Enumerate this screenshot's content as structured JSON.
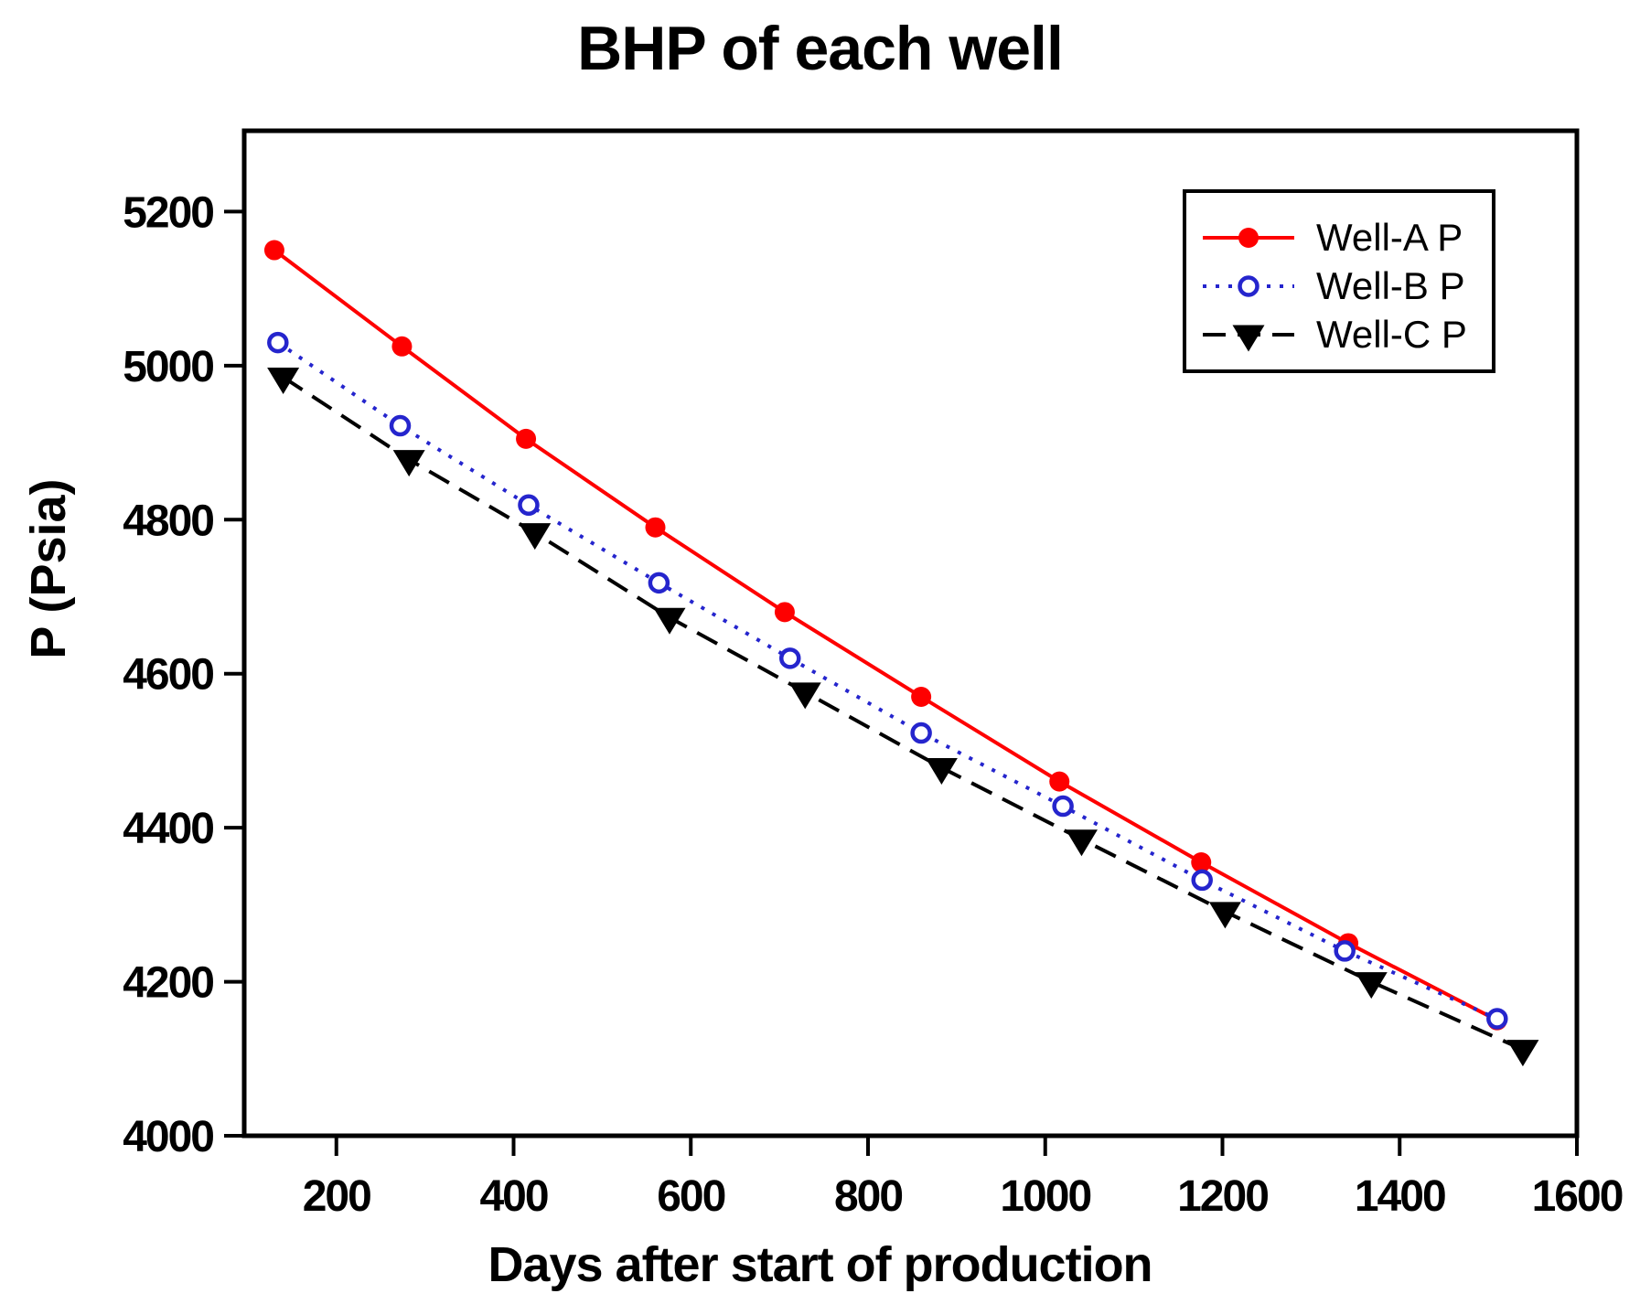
{
  "chart_data": {
    "type": "line",
    "title": "BHP of each well",
    "xlabel": "Days after start of production",
    "ylabel": "P (Psia)",
    "xlim": [
      96,
      1600
    ],
    "ylim": [
      4000,
      5305
    ],
    "xticks": [
      200,
      400,
      600,
      800,
      1000,
      1200,
      1400,
      1600
    ],
    "yticks": [
      4000,
      4200,
      4400,
      4600,
      4800,
      5000,
      5200
    ],
    "grid": false,
    "legend_position": "top-right",
    "axis_color": "#000000",
    "background_color": "#ffffff",
    "series": [
      {
        "name": "Well-A P",
        "color": "#fe0000",
        "line_style": "solid",
        "marker": "filled-circle",
        "x": [
          130,
          274,
          414,
          560,
          706,
          860,
          1016,
          1176,
          1342,
          1510
        ],
        "y": [
          5150,
          5025,
          4905,
          4790,
          4680,
          4570,
          4460,
          4355,
          4250,
          4150
        ]
      },
      {
        "name": "Well-B P",
        "color": "#2525cd",
        "line_style": "dotted",
        "marker": "open-circle",
        "x": [
          134,
          272,
          417,
          564,
          712,
          860,
          1020,
          1177,
          1338,
          1510
        ],
        "y": [
          5030,
          4922,
          4819,
          4718,
          4620,
          4523,
          4428,
          4332,
          4240,
          4152
        ]
      },
      {
        "name": "Well-C P",
        "color": "#000000",
        "line_style": "dashed",
        "marker": "filled-triangle-down",
        "x": [
          140,
          282,
          424,
          576,
          729,
          883,
          1041,
          1203,
          1368,
          1539
        ],
        "y": [
          4985,
          4878,
          4783,
          4673,
          4576,
          4478,
          4385,
          4291,
          4200,
          4112
        ]
      }
    ]
  }
}
